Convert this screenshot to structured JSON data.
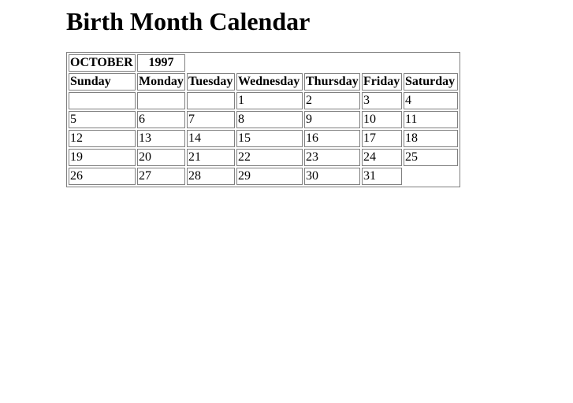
{
  "page": {
    "title": "Birth Month Calendar"
  },
  "calendar": {
    "month": "OCTOBER",
    "year": "1997",
    "weekdays": [
      "Sunday",
      "Monday",
      "Tuesday",
      "Wednesday",
      "Thursday",
      "Friday",
      "Saturday"
    ],
    "weeks": [
      [
        "",
        "",
        "",
        "1",
        "2",
        "3",
        "4"
      ],
      [
        "5",
        "6",
        "7",
        "8",
        "9",
        "10",
        "11"
      ],
      [
        "12",
        "13",
        "14",
        "15",
        "16",
        "17",
        "18"
      ],
      [
        "19",
        "20",
        "21",
        "22",
        "23",
        "24",
        "25"
      ],
      [
        "26",
        "27",
        "28",
        "29",
        "30",
        "31",
        null
      ]
    ]
  }
}
